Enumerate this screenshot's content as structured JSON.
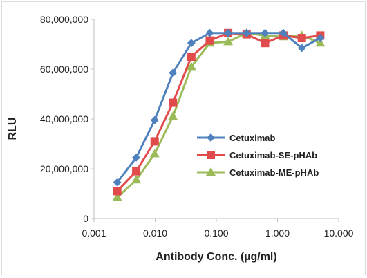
{
  "chart_data": {
    "type": "line",
    "xlabel": "Antibody Conc. (µg/ml)",
    "ylabel": "RLU",
    "x_scale": "log",
    "xlim": [
      0.001,
      10
    ],
    "ylim": [
      0,
      80000000
    ],
    "x_ticks": [
      "0.001",
      "0.010",
      "0.100",
      "1.000",
      "10.000"
    ],
    "x_tick_values": [
      0.001,
      0.01,
      0.1,
      1,
      10
    ],
    "y_ticks": [
      "0",
      "20,000,000",
      "40,000,000",
      "60,000,000",
      "80,000,000"
    ],
    "y_tick_values": [
      0,
      20000000,
      40000000,
      60000000,
      80000000
    ],
    "grid": "none",
    "legend_position": "center-right",
    "x": [
      0.0024,
      0.0049,
      0.0098,
      0.0195,
      0.039,
      0.078,
      0.156,
      0.3125,
      0.625,
      1.25,
      2.5,
      5
    ],
    "series": [
      {
        "name": "Cetuximab",
        "color": "#4f81bd",
        "marker": "diamond",
        "values": [
          14500000,
          24500000,
          39500000,
          58500000,
          70500000,
          74500000,
          74500000,
          74500000,
          74500000,
          74500000,
          68500000,
          72500000
        ]
      },
      {
        "name": "Cetuximab-SE-pHAb",
        "color": "#e24b4b",
        "marker": "square",
        "values": [
          11000000,
          19000000,
          31000000,
          46500000,
          65000000,
          71500000,
          74500000,
          74000000,
          70500000,
          73500000,
          72500000,
          73500000
        ]
      },
      {
        "name": "Cetuximab-ME-pHAb",
        "color": "#9bbb59",
        "marker": "triangle",
        "values": [
          8500000,
          15500000,
          26000000,
          41000000,
          61000000,
          70500000,
          71000000,
          74500000,
          73500000,
          73000000,
          73500000,
          70500000
        ]
      }
    ]
  }
}
